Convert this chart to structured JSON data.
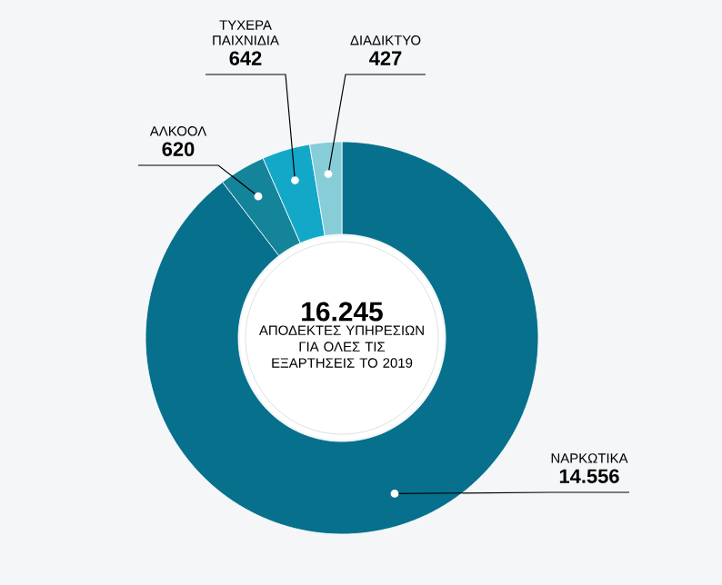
{
  "chart_data": {
    "type": "donut",
    "title": "16.245",
    "subtitle": "ΑΠΟΔΕΚΤΕΣ ΥΠΗΡΕΣΙΩΝ ΓΙΑ ΟΛΕΣ ΤΙΣ ΕΞΑΡΤΗΣΕΙΣ ΤΟ 2019",
    "categories": [
      "ΝΑΡΚΩΤΙΚΑ",
      "ΑΛΚΟΟΛ",
      "ΤΥΧΕΡΑ ΠΑΙΧΝΙΔΙΑ",
      "ΔΙΑΔΙΚΤΥΟ"
    ],
    "values": [
      14556,
      620,
      642,
      427
    ],
    "colors": [
      "#07708d",
      "#14849b",
      "#14a8c8",
      "#86cdd8"
    ],
    "value_labels": [
      "14.556",
      "620",
      "642",
      "427"
    ]
  }
}
